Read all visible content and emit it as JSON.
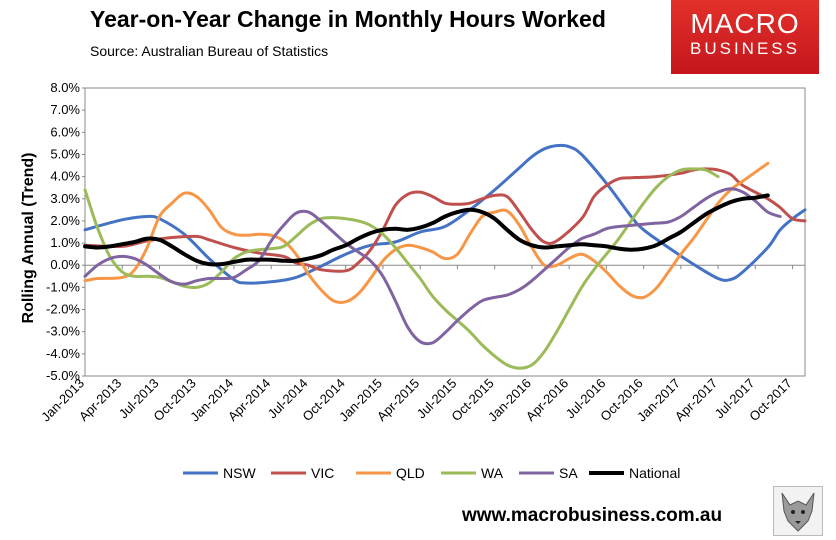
{
  "chart_data": {
    "type": "line",
    "title": "Year-on-Year Change in Monthly Hours Worked",
    "subtitle": "Source: Australian Bureau of Statistics",
    "ylabel": "Rolling Annual (Trend)",
    "xlabel": "",
    "ylim": [
      -5.0,
      8.0
    ],
    "ytick_values": [
      8,
      7,
      6,
      5,
      4,
      3,
      2,
      1,
      0,
      -1,
      -2,
      -3,
      -4,
      -5
    ],
    "ytick_labels": [
      "8.0%",
      "7.0%",
      "6.0%",
      "5.0%",
      "4.0%",
      "3.0%",
      "2.0%",
      "1.0%",
      "0.0%",
      "-1.0%",
      "-2.0%",
      "-3.0%",
      "-4.0%",
      "-5.0%"
    ],
    "x_month_count": 58,
    "x_tick_indices": [
      0,
      3,
      6,
      9,
      12,
      15,
      18,
      21,
      24,
      27,
      30,
      33,
      36,
      39,
      42,
      45,
      48,
      51,
      54,
      57
    ],
    "x_tick_labels": [
      "Jan-2013",
      "Apr-2013",
      "Jul-2013",
      "Oct-2013",
      "Jan-2014",
      "Apr-2014",
      "Jul-2014",
      "Oct-2014",
      "Jan-2015",
      "Apr-2015",
      "Jul-2015",
      "Oct-2015",
      "Jan-2016",
      "Apr-2016",
      "Jul-2016",
      "Oct-2016",
      "Jan-2017",
      "Apr-2017",
      "Jul-2017",
      "Oct-2017"
    ],
    "gridlines": false,
    "legend_position": "bottom",
    "series": [
      {
        "name": "NSW",
        "color": "#4472c4",
        "width": 3,
        "points": [
          [
            0,
            1.6
          ],
          [
            3,
            2.05
          ],
          [
            5,
            2.2
          ],
          [
            6,
            2.1
          ],
          [
            8,
            1.4
          ],
          [
            10,
            0.3
          ],
          [
            12,
            -0.65
          ],
          [
            13,
            -0.8
          ],
          [
            15,
            -0.75
          ],
          [
            17,
            -0.55
          ],
          [
            19,
            -0.05
          ],
          [
            21,
            0.5
          ],
          [
            23,
            0.9
          ],
          [
            25,
            1.05
          ],
          [
            27,
            1.5
          ],
          [
            29,
            1.75
          ],
          [
            31,
            2.5
          ],
          [
            33,
            3.4
          ],
          [
            35,
            4.4
          ],
          [
            36,
            4.9
          ],
          [
            37,
            5.25
          ],
          [
            38,
            5.4
          ],
          [
            39,
            5.35
          ],
          [
            40,
            5.0
          ],
          [
            42,
            3.7
          ],
          [
            44,
            2.2
          ],
          [
            45,
            1.6
          ],
          [
            47,
            0.8
          ],
          [
            49,
            0.05
          ],
          [
            51,
            -0.6
          ],
          [
            52,
            -0.65
          ],
          [
            53,
            -0.3
          ],
          [
            55,
            0.8
          ],
          [
            56,
            1.6
          ],
          [
            57,
            2.1
          ],
          [
            58,
            2.5
          ],
          [
            59,
            2.75
          ],
          [
            60,
            2.4
          ],
          [
            61,
            2.2
          ]
        ]
      },
      {
        "name": "VIC",
        "color": "#c0504d",
        "width": 3,
        "points": [
          [
            0,
            0.9
          ],
          [
            3,
            0.85
          ],
          [
            5,
            1.1
          ],
          [
            7,
            1.25
          ],
          [
            9,
            1.3
          ],
          [
            10,
            1.15
          ],
          [
            12,
            0.8
          ],
          [
            14,
            0.55
          ],
          [
            16,
            0.4
          ],
          [
            17,
            0.1
          ],
          [
            18,
            0.0
          ],
          [
            19,
            -0.2
          ],
          [
            21,
            -0.25
          ],
          [
            22,
            0.1
          ],
          [
            23,
            0.7
          ],
          [
            24,
            1.6
          ],
          [
            25,
            2.7
          ],
          [
            26,
            3.2
          ],
          [
            27,
            3.3
          ],
          [
            28,
            3.1
          ],
          [
            29,
            2.8
          ],
          [
            30,
            2.75
          ],
          [
            31,
            2.8
          ],
          [
            32,
            3.0
          ],
          [
            33,
            3.15
          ],
          [
            34,
            3.1
          ],
          [
            35,
            2.4
          ],
          [
            36,
            1.6
          ],
          [
            37,
            1.05
          ],
          [
            38,
            1.1
          ],
          [
            40,
            2.1
          ],
          [
            41,
            3.1
          ],
          [
            42,
            3.6
          ],
          [
            43,
            3.9
          ],
          [
            44,
            3.95
          ],
          [
            46,
            4.0
          ],
          [
            48,
            4.15
          ],
          [
            49,
            4.3
          ],
          [
            50,
            4.35
          ],
          [
            51,
            4.3
          ],
          [
            52,
            4.1
          ],
          [
            53,
            3.6
          ],
          [
            55,
            3.0
          ],
          [
            56,
            2.6
          ],
          [
            57,
            2.1
          ],
          [
            58,
            2.0
          ],
          [
            61,
            2.1
          ]
        ]
      },
      {
        "name": "QLD",
        "color": "#f79646",
        "width": 3,
        "points": [
          [
            0,
            -0.7
          ],
          [
            1,
            -0.6
          ],
          [
            3,
            -0.55
          ],
          [
            4,
            -0.2
          ],
          [
            5,
            0.8
          ],
          [
            6,
            2.2
          ],
          [
            7,
            2.8
          ],
          [
            8,
            3.25
          ],
          [
            9,
            3.1
          ],
          [
            10,
            2.5
          ],
          [
            11,
            1.7
          ],
          [
            12,
            1.4
          ],
          [
            13,
            1.35
          ],
          [
            14,
            1.4
          ],
          [
            15,
            1.35
          ],
          [
            16,
            1.1
          ],
          [
            17,
            0.5
          ],
          [
            18,
            -0.4
          ],
          [
            19,
            -1.1
          ],
          [
            20,
            -1.6
          ],
          [
            21,
            -1.65
          ],
          [
            22,
            -1.3
          ],
          [
            23,
            -0.6
          ],
          [
            24,
            0.2
          ],
          [
            25,
            0.7
          ],
          [
            26,
            0.9
          ],
          [
            27,
            0.8
          ],
          [
            28,
            0.6
          ],
          [
            29,
            0.3
          ],
          [
            30,
            0.5
          ],
          [
            31,
            1.4
          ],
          [
            32,
            2.2
          ],
          [
            33,
            2.4
          ],
          [
            34,
            2.45
          ],
          [
            35,
            1.8
          ],
          [
            36,
            0.8
          ],
          [
            37,
            0.0
          ],
          [
            38,
            0.0
          ],
          [
            39,
            0.3
          ],
          [
            40,
            0.5
          ],
          [
            41,
            0.2
          ],
          [
            42,
            -0.3
          ],
          [
            43,
            -0.9
          ],
          [
            44,
            -1.35
          ],
          [
            45,
            -1.45
          ],
          [
            46,
            -1.05
          ],
          [
            47,
            -0.3
          ],
          [
            48,
            0.5
          ],
          [
            49,
            1.2
          ],
          [
            50,
            2.0
          ],
          [
            51,
            2.8
          ],
          [
            52,
            3.4
          ],
          [
            53,
            3.8
          ],
          [
            54,
            4.2
          ],
          [
            55,
            4.6
          ]
        ]
      },
      {
        "name": "WA",
        "color": "#9bbb59",
        "width": 3,
        "points": [
          [
            0,
            3.4
          ],
          [
            1,
            1.7
          ],
          [
            2,
            0.4
          ],
          [
            3,
            -0.3
          ],
          [
            4,
            -0.5
          ],
          [
            5,
            -0.5
          ],
          [
            6,
            -0.55
          ],
          [
            7,
            -0.75
          ],
          [
            8,
            -0.95
          ],
          [
            9,
            -1.0
          ],
          [
            10,
            -0.8
          ],
          [
            11,
            -0.3
          ],
          [
            12,
            0.3
          ],
          [
            13,
            0.6
          ],
          [
            14,
            0.7
          ],
          [
            15,
            0.75
          ],
          [
            16,
            0.85
          ],
          [
            17,
            1.3
          ],
          [
            18,
            1.8
          ],
          [
            19,
            2.1
          ],
          [
            20,
            2.15
          ],
          [
            21,
            2.1
          ],
          [
            22,
            2.0
          ],
          [
            23,
            1.8
          ],
          [
            24,
            1.4
          ],
          [
            25,
            0.8
          ],
          [
            26,
            0.1
          ],
          [
            27,
            -0.6
          ],
          [
            28,
            -1.4
          ],
          [
            29,
            -2.0
          ],
          [
            30,
            -2.5
          ],
          [
            31,
            -3.0
          ],
          [
            32,
            -3.6
          ],
          [
            33,
            -4.1
          ],
          [
            34,
            -4.5
          ],
          [
            35,
            -4.65
          ],
          [
            36,
            -4.5
          ],
          [
            37,
            -3.9
          ],
          [
            38,
            -3.0
          ],
          [
            39,
            -2.0
          ],
          [
            40,
            -1.0
          ],
          [
            41,
            -0.2
          ],
          [
            42,
            0.5
          ],
          [
            43,
            1.2
          ],
          [
            44,
            2.0
          ],
          [
            45,
            2.8
          ],
          [
            46,
            3.5
          ],
          [
            47,
            4.0
          ],
          [
            48,
            4.3
          ],
          [
            49,
            4.35
          ],
          [
            50,
            4.3
          ],
          [
            51,
            4.0
          ]
        ]
      },
      {
        "name": "SA",
        "color": "#8064a2",
        "width": 3,
        "points": [
          [
            0,
            -0.5
          ],
          [
            1,
            0.0
          ],
          [
            2,
            0.3
          ],
          [
            3,
            0.4
          ],
          [
            4,
            0.3
          ],
          [
            5,
            0.0
          ],
          [
            6,
            -0.4
          ],
          [
            7,
            -0.75
          ],
          [
            8,
            -0.85
          ],
          [
            9,
            -0.7
          ],
          [
            10,
            -0.6
          ],
          [
            11,
            -0.6
          ],
          [
            12,
            -0.55
          ],
          [
            13,
            -0.2
          ],
          [
            14,
            0.2
          ],
          [
            15,
            1.1
          ],
          [
            16,
            1.8
          ],
          [
            17,
            2.35
          ],
          [
            18,
            2.4
          ],
          [
            19,
            2.0
          ],
          [
            20,
            1.5
          ],
          [
            21,
            1.0
          ],
          [
            22,
            0.6
          ],
          [
            23,
            0.2
          ],
          [
            24,
            -0.5
          ],
          [
            25,
            -1.6
          ],
          [
            26,
            -2.8
          ],
          [
            27,
            -3.45
          ],
          [
            28,
            -3.5
          ],
          [
            29,
            -3.05
          ],
          [
            30,
            -2.5
          ],
          [
            31,
            -2.0
          ],
          [
            32,
            -1.6
          ],
          [
            33,
            -1.45
          ],
          [
            34,
            -1.35
          ],
          [
            35,
            -1.1
          ],
          [
            36,
            -0.7
          ],
          [
            37,
            -0.2
          ],
          [
            38,
            0.3
          ],
          [
            39,
            0.8
          ],
          [
            40,
            1.2
          ],
          [
            41,
            1.4
          ],
          [
            42,
            1.65
          ],
          [
            43,
            1.75
          ],
          [
            44,
            1.8
          ],
          [
            45,
            1.85
          ],
          [
            46,
            1.9
          ],
          [
            47,
            1.95
          ],
          [
            48,
            2.2
          ],
          [
            49,
            2.6
          ],
          [
            50,
            3.0
          ],
          [
            51,
            3.3
          ],
          [
            52,
            3.45
          ],
          [
            53,
            3.3
          ],
          [
            54,
            2.9
          ],
          [
            55,
            2.4
          ],
          [
            56,
            2.2
          ]
        ]
      },
      {
        "name": "National",
        "color": "#000000",
        "width": 4,
        "points": [
          [
            0,
            0.85
          ],
          [
            1,
            0.8
          ],
          [
            2,
            0.85
          ],
          [
            3,
            0.95
          ],
          [
            4,
            1.05
          ],
          [
            5,
            1.2
          ],
          [
            6,
            1.15
          ],
          [
            7,
            0.85
          ],
          [
            8,
            0.5
          ],
          [
            9,
            0.2
          ],
          [
            10,
            0.05
          ],
          [
            11,
            0.05
          ],
          [
            12,
            0.15
          ],
          [
            13,
            0.25
          ],
          [
            14,
            0.25
          ],
          [
            15,
            0.25
          ],
          [
            16,
            0.2
          ],
          [
            17,
            0.2
          ],
          [
            18,
            0.3
          ],
          [
            19,
            0.45
          ],
          [
            20,
            0.7
          ],
          [
            21,
            0.9
          ],
          [
            22,
            1.2
          ],
          [
            23,
            1.45
          ],
          [
            24,
            1.6
          ],
          [
            25,
            1.65
          ],
          [
            26,
            1.6
          ],
          [
            27,
            1.7
          ],
          [
            28,
            1.9
          ],
          [
            29,
            2.2
          ],
          [
            30,
            2.4
          ],
          [
            31,
            2.5
          ],
          [
            32,
            2.4
          ],
          [
            33,
            2.1
          ],
          [
            34,
            1.6
          ],
          [
            35,
            1.15
          ],
          [
            36,
            0.9
          ],
          [
            37,
            0.8
          ],
          [
            38,
            0.85
          ],
          [
            39,
            0.9
          ],
          [
            40,
            0.95
          ],
          [
            41,
            0.9
          ],
          [
            42,
            0.85
          ],
          [
            43,
            0.75
          ],
          [
            44,
            0.7
          ],
          [
            45,
            0.75
          ],
          [
            46,
            0.9
          ],
          [
            47,
            1.2
          ],
          [
            48,
            1.5
          ],
          [
            49,
            1.9
          ],
          [
            50,
            2.3
          ],
          [
            51,
            2.6
          ],
          [
            52,
            2.85
          ],
          [
            53,
            3.0
          ],
          [
            54,
            3.05
          ],
          [
            55,
            3.15
          ]
        ]
      }
    ]
  },
  "branding": {
    "logo_line1": "MACRO",
    "logo_line2": "BUSINESS",
    "website": "www.macrobusiness.com.au"
  }
}
